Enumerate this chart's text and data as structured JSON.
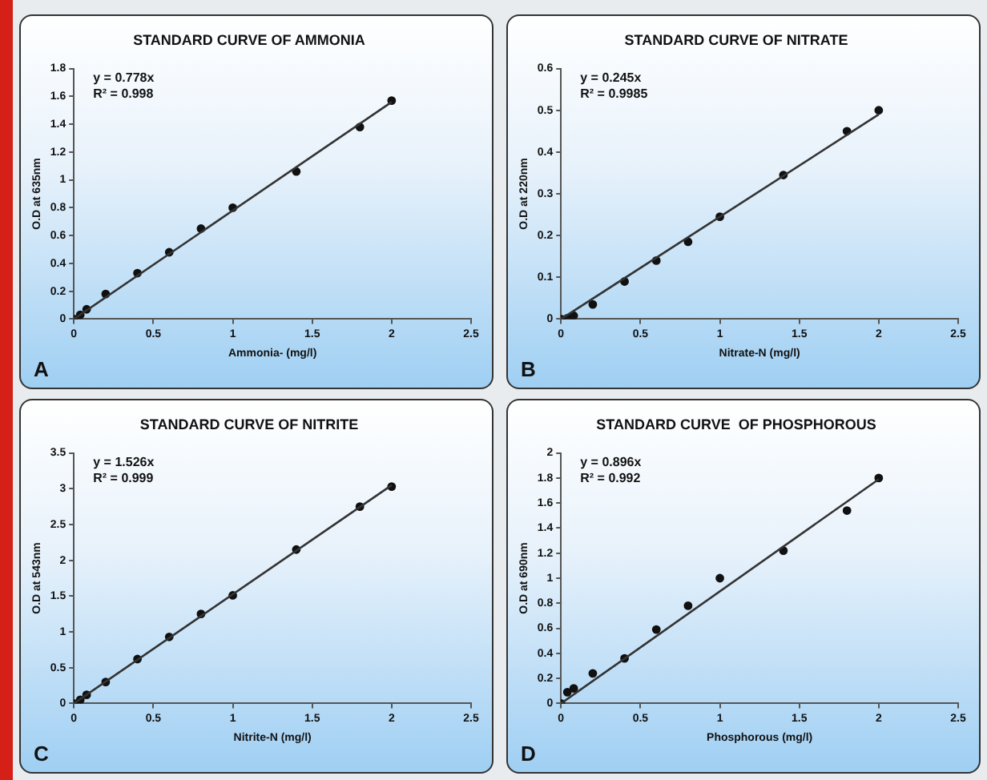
{
  "chart_data": [
    {
      "type": "scatter",
      "title": "STANDARD CURVE OF AMMONIA",
      "xlabel": "Ammonia- (mg/l)",
      "ylabel": "O.D at 635nm",
      "annotations": [
        "y = 0.778x",
        "R² = 0.998",
        "A"
      ],
      "xlim": [
        0,
        2.5
      ],
      "xticks": [
        0,
        0.5,
        1,
        1.5,
        2,
        2.5
      ],
      "ylim": [
        0,
        1.8
      ],
      "yticks": [
        0,
        0.2,
        0.4,
        0.6,
        0.8,
        1,
        1.2,
        1.4,
        1.6,
        1.8
      ],
      "grid": false,
      "legend": false,
      "series": [
        {
          "type": "scatter",
          "marker": "circle",
          "color": "#111111",
          "x": [
            0,
            0.04,
            0.08,
            0.2,
            0.4,
            0.6,
            0.8,
            1,
            1.4,
            1.8,
            2
          ],
          "values": [
            0,
            0.03,
            0.07,
            0.18,
            0.33,
            0.48,
            0.65,
            0.8,
            1.06,
            1.38,
            1.57
          ]
        },
        {
          "type": "line",
          "marker": "none",
          "line_style": "solid",
          "color": "#333333",
          "x": [
            0,
            2
          ],
          "values": [
            0,
            1.56
          ]
        }
      ]
    },
    {
      "type": "scatter",
      "title": "STANDARD CURVE OF NITRATE",
      "xlabel": "Nitrate-N (mg/l)",
      "ylabel": "O.D at 220nm",
      "annotations": [
        "y = 0.245x",
        "R² = 0.9985",
        "B"
      ],
      "xlim": [
        0,
        2.5
      ],
      "xticks": [
        0,
        0.5,
        1,
        1.5,
        2,
        2.5
      ],
      "ylim": [
        0,
        0.6
      ],
      "yticks": [
        0,
        0.1,
        0.2,
        0.3,
        0.4,
        0.5,
        0.6
      ],
      "grid": false,
      "legend": false,
      "series": [
        {
          "type": "scatter",
          "marker": "circle",
          "color": "#111111",
          "x": [
            0,
            0.04,
            0.08,
            0.2,
            0.4,
            0.6,
            0.8,
            1,
            1.4,
            1.8,
            2
          ],
          "values": [
            0,
            0.002,
            0.008,
            0.035,
            0.09,
            0.14,
            0.185,
            0.245,
            0.345,
            0.45,
            0.5
          ]
        },
        {
          "type": "line",
          "marker": "none",
          "line_style": "solid",
          "color": "#333333",
          "x": [
            0,
            2
          ],
          "values": [
            0,
            0.49
          ]
        }
      ]
    },
    {
      "type": "scatter",
      "title": "STANDARD CURVE OF NITRITE",
      "xlabel": "Nitrite-N (mg/l)",
      "ylabel": "O.D at 543nm",
      "annotations": [
        "y = 1.526x",
        "R² = 0.999",
        "C"
      ],
      "xlim": [
        0,
        2.5
      ],
      "xticks": [
        0,
        0.5,
        1,
        1.5,
        2,
        2.5
      ],
      "ylim": [
        0,
        3.5
      ],
      "yticks": [
        0,
        0.5,
        1,
        1.5,
        2,
        2.5,
        3,
        3.5
      ],
      "grid": false,
      "legend": false,
      "series": [
        {
          "type": "scatter",
          "marker": "circle",
          "color": "#111111",
          "x": [
            0,
            0.04,
            0.08,
            0.2,
            0.4,
            0.6,
            0.8,
            1,
            1.4,
            1.8,
            2
          ],
          "values": [
            0,
            0.05,
            0.12,
            0.3,
            0.62,
            0.93,
            1.25,
            1.51,
            2.15,
            2.75,
            3.03
          ]
        },
        {
          "type": "line",
          "marker": "none",
          "line_style": "solid",
          "color": "#333333",
          "x": [
            0,
            2
          ],
          "values": [
            0,
            3.05
          ]
        }
      ]
    },
    {
      "type": "scatter",
      "title": "STANDARD CURVE  OF PHOSPHOROUS",
      "xlabel": "Phosphorous (mg/l)",
      "ylabel": "O.D at 690nm",
      "annotations": [
        "y = 0.896x",
        "R² = 0.992",
        "D"
      ],
      "xlim": [
        0,
        2.5
      ],
      "xticks": [
        0,
        0.5,
        1,
        1.5,
        2,
        2.5
      ],
      "ylim": [
        0,
        2
      ],
      "yticks": [
        0,
        0.2,
        0.4,
        0.6,
        0.8,
        1,
        1.2,
        1.4,
        1.6,
        1.8,
        2
      ],
      "grid": false,
      "legend": false,
      "series": [
        {
          "type": "scatter",
          "marker": "circle",
          "color": "#111111",
          "x": [
            0,
            0.04,
            0.08,
            0.2,
            0.4,
            0.6,
            0.8,
            1,
            1.4,
            1.8,
            2
          ],
          "values": [
            0,
            0.09,
            0.12,
            0.24,
            0.36,
            0.59,
            0.78,
            1,
            1.22,
            1.54,
            1.8
          ]
        },
        {
          "type": "line",
          "marker": "none",
          "line_style": "solid",
          "color": "#333333",
          "x": [
            0,
            2
          ],
          "values": [
            0,
            1.79
          ]
        }
      ]
    }
  ]
}
